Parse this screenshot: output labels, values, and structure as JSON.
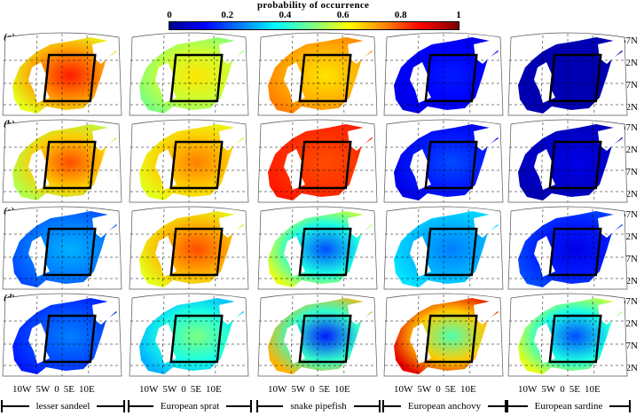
{
  "colorbar": {
    "title": "probability of occurrence",
    "ticks": [
      "0",
      "0.2",
      "0.4",
      "0.6",
      "0.8",
      "1"
    ],
    "range": [
      0,
      1
    ]
  },
  "rows": [
    "(a)",
    "(b)",
    "(c)",
    "(d)"
  ],
  "latitudes": [
    "67N",
    "62N",
    "57N",
    "52N"
  ],
  "longitudes": [
    "10W",
    "5W",
    "0",
    "5E",
    "10E"
  ],
  "species": [
    "lesser sandeel",
    "European sprat",
    "snake pipefish",
    "European anchovy",
    "European sardine"
  ],
  "chart_data": {
    "type": "heatmap",
    "title": "probability of occurrence",
    "rows": [
      "(a)",
      "(b)",
      "(c)",
      "(d)"
    ],
    "columns": [
      "lesser sandeel",
      "European sprat",
      "snake pipefish",
      "European anchovy",
      "European sardine"
    ],
    "approx_center_probability": [
      [
        0.85,
        0.65,
        0.65,
        0.15,
        0.05
      ],
      [
        0.8,
        0.75,
        0.8,
        0.2,
        0.1
      ],
      [
        0.3,
        0.8,
        0.2,
        0.25,
        0.1
      ],
      [
        0.25,
        0.5,
        0.15,
        0.45,
        0.2
      ]
    ],
    "approx_edge_probability": [
      [
        0.6,
        0.5,
        0.75,
        0.1,
        0.05
      ],
      [
        0.55,
        0.6,
        0.85,
        0.1,
        0.05
      ],
      [
        0.2,
        0.6,
        0.6,
        0.35,
        0.2
      ],
      [
        0.15,
        0.3,
        0.7,
        0.9,
        0.6
      ]
    ]
  }
}
